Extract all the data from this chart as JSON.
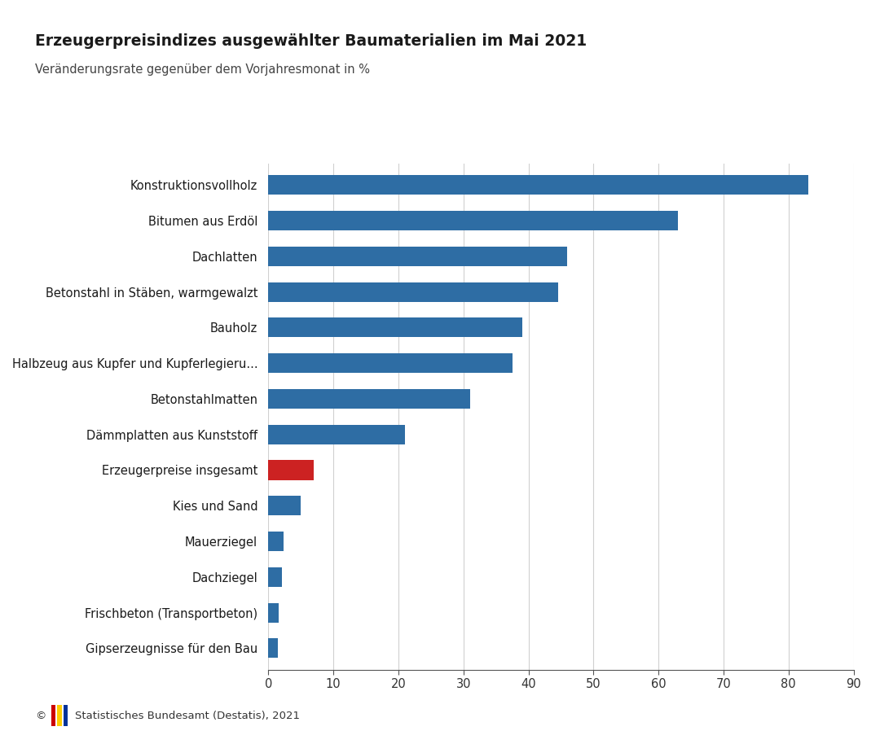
{
  "title": "Erzeugerpreisindizes ausgewählter Baumaterialien im Mai 2021",
  "subtitle": "Veränderungsrate gegenüber dem Vorjahresmonat in %",
  "categories": [
    "Konstruktionsvollholz",
    "Bitumen aus Erdöl",
    "Dachlatten",
    "Betonstahl in Stäben, warmgewalzt",
    "Bauholz",
    "Halbzeug aus Kupfer und Kupferlegieru...",
    "Betonstahlmatten",
    "Dämmplatten aus Kunststoff",
    "Erzeugerpreise insgesamt",
    "Kies und Sand",
    "Mauerziegel",
    "Dachziegel",
    "Frischbeton (Transportbeton)",
    "Gipserzeugnisse für den Bau"
  ],
  "values": [
    83.0,
    63.0,
    46.0,
    44.5,
    39.0,
    37.5,
    31.0,
    21.0,
    7.0,
    5.0,
    2.3,
    2.1,
    1.6,
    1.5
  ],
  "colors": [
    "#2e6da4",
    "#2e6da4",
    "#2e6da4",
    "#2e6da4",
    "#2e6da4",
    "#2e6da4",
    "#2e6da4",
    "#2e6da4",
    "#cc2222",
    "#2e6da4",
    "#2e6da4",
    "#2e6da4",
    "#2e6da4",
    "#2e6da4"
  ],
  "xlim": [
    0,
    90
  ],
  "xticks": [
    0,
    10,
    20,
    30,
    40,
    50,
    60,
    70,
    80,
    90
  ],
  "background_color": "#ffffff",
  "grid_color": "#d0d0d0",
  "title_fontsize": 13.5,
  "subtitle_fontsize": 10.5,
  "label_fontsize": 10.5,
  "tick_fontsize": 10.5,
  "footer_text": "©  Statistisches Bundesamt (Destatis), 2021",
  "logo_colors": [
    "#cc0000",
    "#ffcc00",
    "#003399"
  ]
}
